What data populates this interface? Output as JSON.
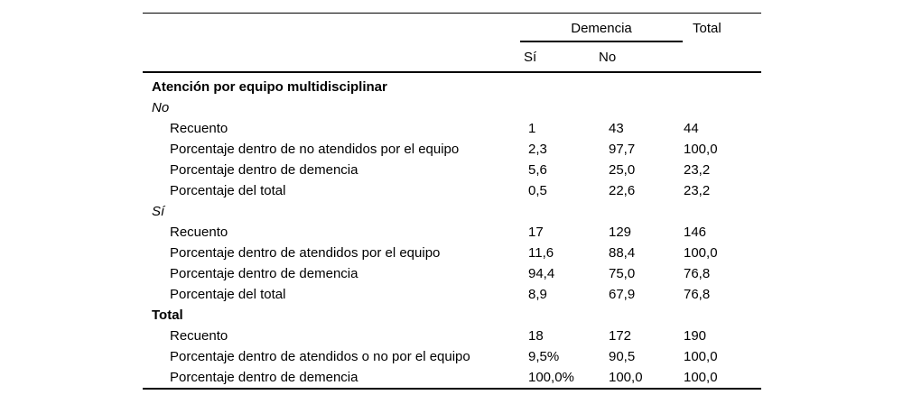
{
  "page": {
    "background": "#ffffff",
    "text_color": "#000000",
    "rule_color": "#000000"
  },
  "table": {
    "header": {
      "spanner_label": "Demencia",
      "columns": [
        "Sí",
        "No"
      ],
      "total_label": "Total"
    },
    "rows": [
      {
        "label": "Atención por equipo multidisciplinar",
        "style": "bold"
      },
      {
        "label": "No",
        "style": "italic"
      },
      {
        "label": "Recuento",
        "style": "indent",
        "values": [
          "1",
          "43",
          "44"
        ]
      },
      {
        "label": "Porcentaje dentro de no atendidos por el equipo",
        "style": "indent",
        "values": [
          "2,3",
          "97,7",
          "100,0"
        ]
      },
      {
        "label": "Porcentaje dentro de demencia",
        "style": "indent",
        "values": [
          "5,6",
          "25,0",
          "23,2"
        ]
      },
      {
        "label": "Porcentaje del total",
        "style": "indent",
        "values": [
          "0,5",
          "22,6",
          "23,2"
        ]
      },
      {
        "label": "Sí",
        "style": "italic"
      },
      {
        "label": "Recuento",
        "style": "indent",
        "values": [
          "17",
          "129",
          "146"
        ]
      },
      {
        "label": "Porcentaje dentro de atendidos por el equipo",
        "style": "indent",
        "values": [
          "11,6",
          "88,4",
          "100,0"
        ]
      },
      {
        "label": "Porcentaje dentro de demencia",
        "style": "indent",
        "values": [
          "94,4",
          "75,0",
          "76,8"
        ]
      },
      {
        "label": "Porcentaje del total",
        "style": "indent",
        "values": [
          "8,9",
          "67,9",
          "76,8"
        ]
      },
      {
        "label": "Total",
        "style": "bold"
      },
      {
        "label": "Recuento",
        "style": "indent",
        "values": [
          "18",
          "172",
          "190"
        ]
      },
      {
        "label": "Porcentaje dentro de atendidos o no por el equipo",
        "style": "indent",
        "values": [
          "9,5%",
          "90,5",
          "100,0"
        ]
      },
      {
        "label": "Porcentaje dentro de demencia",
        "style": "indent",
        "values": [
          "100,0%",
          "100,0",
          "100,0"
        ]
      }
    ]
  }
}
